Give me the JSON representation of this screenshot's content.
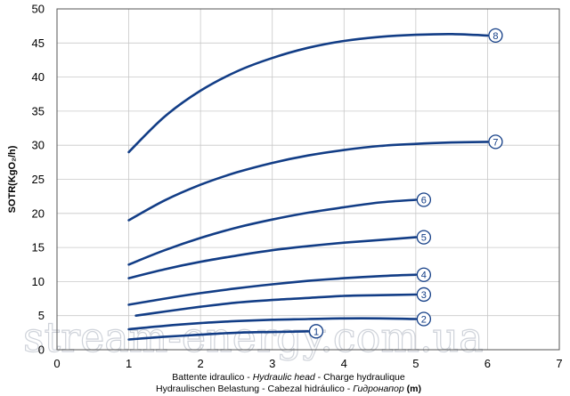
{
  "chart_data": {
    "type": "line",
    "ylabel": "SOTR(KgO₂/h)",
    "xlabel_line1": [
      "Battente idraulico - ",
      "Hydraulic head",
      " - Charge hydraulique"
    ],
    "xlabel_line2": [
      "Hydraulischen Belastung",
      " - Cabezal hidráulico - ",
      "Гидронапор",
      " (m)"
    ],
    "xlim": [
      0,
      7
    ],
    "ylim": [
      0,
      50
    ],
    "xticks": [
      "0",
      "1",
      "2",
      "3",
      "4",
      "5",
      "6",
      "7"
    ],
    "yticks": [
      "0",
      "5",
      "10",
      "15",
      "20",
      "25",
      "30",
      "35",
      "40",
      "45",
      "50"
    ],
    "grid": true,
    "series_color": "#123d86",
    "series": [
      {
        "label": "1",
        "x": [
          1,
          1.5,
          2,
          2.5,
          3,
          3.5
        ],
        "y": [
          1.5,
          1.9,
          2.2,
          2.5,
          2.6,
          2.7
        ]
      },
      {
        "label": "2",
        "x": [
          1,
          1.5,
          2,
          2.5,
          3,
          3.5,
          4,
          4.5,
          5
        ],
        "y": [
          3.0,
          3.5,
          3.9,
          4.2,
          4.4,
          4.5,
          4.6,
          4.6,
          4.5
        ]
      },
      {
        "label": "3",
        "x": [
          1.1,
          1.5,
          2,
          2.5,
          3,
          3.5,
          4,
          4.5,
          5
        ],
        "y": [
          5.0,
          5.6,
          6.3,
          6.9,
          7.3,
          7.6,
          7.9,
          8.0,
          8.1
        ]
      },
      {
        "label": "4",
        "x": [
          1,
          1.5,
          2,
          2.5,
          3,
          3.5,
          4,
          4.5,
          5
        ],
        "y": [
          6.6,
          7.5,
          8.3,
          9.0,
          9.6,
          10.1,
          10.5,
          10.8,
          11.0
        ]
      },
      {
        "label": "5",
        "x": [
          1,
          1.5,
          2,
          2.5,
          3,
          3.5,
          4,
          4.5,
          5
        ],
        "y": [
          10.5,
          11.8,
          12.9,
          13.8,
          14.6,
          15.2,
          15.7,
          16.1,
          16.5
        ]
      },
      {
        "label": "6",
        "x": [
          1,
          1.5,
          2,
          2.5,
          3,
          3.5,
          4,
          4.5,
          5
        ],
        "y": [
          12.5,
          14.6,
          16.4,
          17.9,
          19.1,
          20.1,
          20.9,
          21.6,
          22.0
        ]
      },
      {
        "label": "7",
        "x": [
          1,
          1.5,
          2,
          2.5,
          3,
          3.5,
          4,
          4.5,
          5,
          5.5,
          6
        ],
        "y": [
          19.0,
          21.9,
          24.2,
          26.0,
          27.4,
          28.5,
          29.3,
          29.9,
          30.2,
          30.4,
          30.5
        ]
      },
      {
        "label": "8",
        "x": [
          1,
          1.5,
          2,
          2.5,
          3,
          3.5,
          4,
          4.5,
          5,
          5.5,
          6
        ],
        "y": [
          29.0,
          34.2,
          38.0,
          40.8,
          42.8,
          44.3,
          45.3,
          45.9,
          46.2,
          46.3,
          46.1
        ]
      }
    ],
    "watermark": "stream-energy.com.ua"
  }
}
